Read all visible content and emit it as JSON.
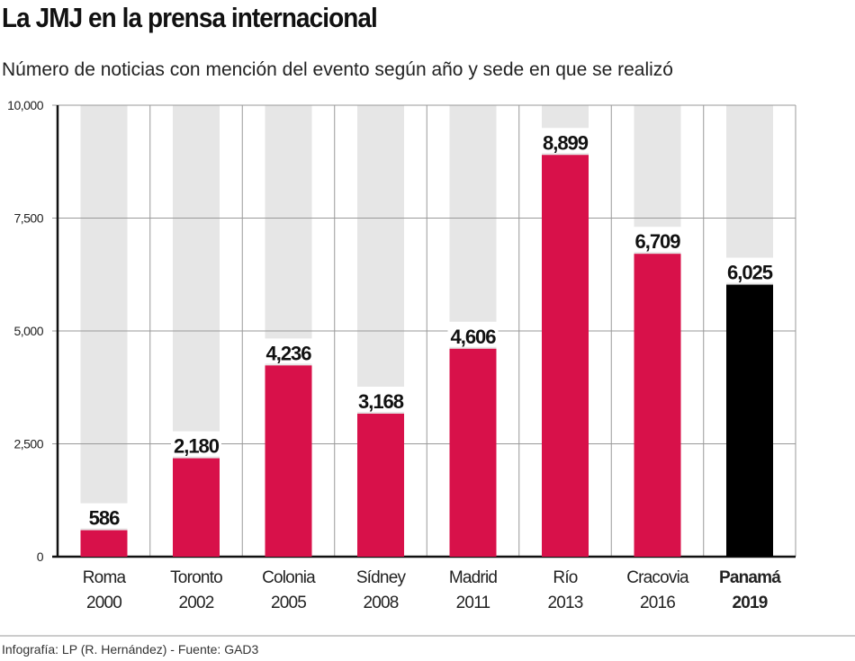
{
  "title": "La JMJ en la prensa internacional",
  "subtitle": "Número de noticias con mención del evento según año y sede en que se realizó",
  "footer": "Infografía: LP (R. Hernández) - Fuente: GAD3",
  "chart_data": {
    "type": "bar",
    "categories": [
      [
        "Roma",
        "2000"
      ],
      [
        "Toronto",
        "2002"
      ],
      [
        "Colonia",
        "2005"
      ],
      [
        "Sídney",
        "2008"
      ],
      [
        "Madrid",
        "2011"
      ],
      [
        "Río",
        "2013"
      ],
      [
        "Cracovia",
        "2016"
      ],
      [
        "Panamá",
        "2019"
      ]
    ],
    "values": [
      586,
      2180,
      4236,
      3168,
      4606,
      8899,
      6709,
      6025
    ],
    "value_labels": [
      "586",
      "2,180",
      "4,236",
      "3,168",
      "4,606",
      "8,899",
      "6,709",
      "6,025"
    ],
    "highlight_index": 7,
    "ylim": [
      0,
      10000
    ],
    "yticks": [
      0,
      2500,
      5000,
      7500,
      10000
    ],
    "ytick_labels": [
      "0",
      "2,500",
      "5,000",
      "7,500",
      "10,000"
    ],
    "grid": true,
    "colors": {
      "bar": "#d8114a",
      "highlight": "#000000",
      "background_column": "#e6e6e6",
      "grid": "#999999"
    }
  }
}
